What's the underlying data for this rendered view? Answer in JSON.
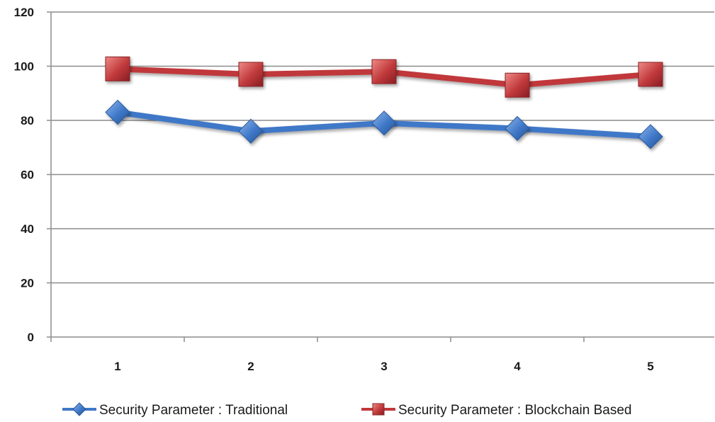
{
  "chart_data": {
    "type": "line",
    "title": "",
    "xlabel": "",
    "ylabel": "",
    "categories": [
      "1",
      "2",
      "3",
      "4",
      "5"
    ],
    "ylim": [
      0,
      120
    ],
    "yticks": [
      0,
      20,
      40,
      60,
      80,
      100,
      120
    ],
    "grid": true,
    "legend": "bottom",
    "series": [
      {
        "name": "Security Parameter : Traditional",
        "values": [
          83,
          76,
          79,
          77,
          74
        ],
        "color": "#3f78c8",
        "marker": "diamond"
      },
      {
        "name": "Security Parameter : Blockchain Based",
        "values": [
          99,
          97,
          98,
          93,
          97
        ],
        "color": "#c0393b",
        "marker": "square"
      }
    ]
  }
}
